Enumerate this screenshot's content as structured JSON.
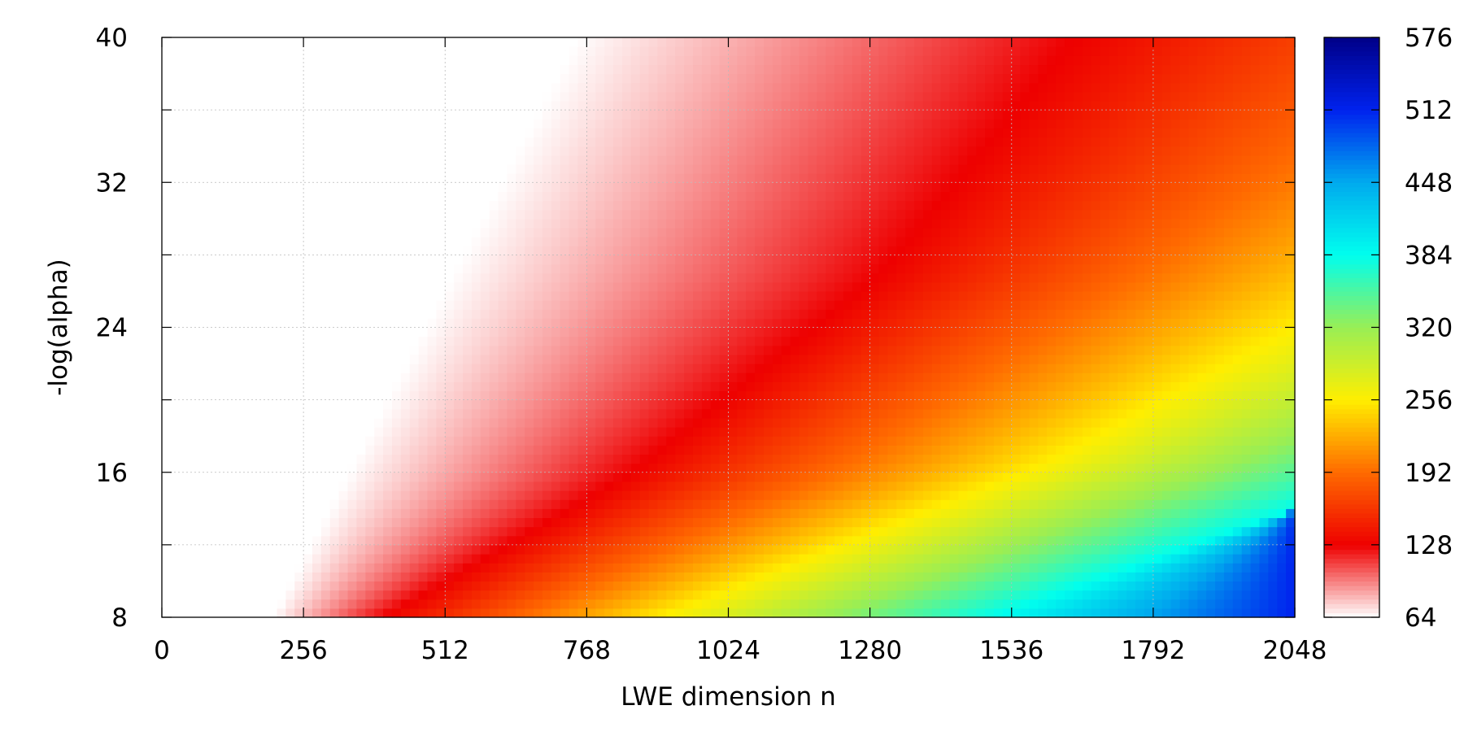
{
  "chart_data": {
    "type": "heatmap",
    "xlabel": "LWE dimension n",
    "ylabel": "-log(alpha)",
    "xlim": [
      0,
      2048
    ],
    "ylim": [
      8,
      40
    ],
    "x_ticks": [
      "0",
      "256",
      "512",
      "768",
      "1024",
      "1280",
      "1536",
      "1792",
      "2048"
    ],
    "y_ticks": [
      "8",
      "16",
      "24",
      "32",
      "40"
    ],
    "colorbar": {
      "range": [
        64,
        576
      ],
      "ticks": [
        "64",
        "128",
        "192",
        "256",
        "320",
        "384",
        "448",
        "512",
        "576"
      ],
      "colormap": [
        {
          "value": 64,
          "color": "#ffffff"
        },
        {
          "value": 128,
          "color": "#ee0000"
        },
        {
          "value": 192,
          "color": "#ff6a00"
        },
        {
          "value": 256,
          "color": "#ffee00"
        },
        {
          "value": 320,
          "color": "#99ee55"
        },
        {
          "value": 384,
          "color": "#00ffee"
        },
        {
          "value": 448,
          "color": "#00aaee"
        },
        {
          "value": 512,
          "color": "#0022ee"
        },
        {
          "value": 576,
          "color": "#000088"
        }
      ]
    },
    "grid": true,
    "value_contours": [
      {
        "value": 64,
        "points": [
          [
            200,
            8
          ],
          [
            750,
            40
          ]
        ]
      },
      {
        "value": 128,
        "points": [
          [
            400,
            8
          ],
          [
            850,
            16
          ],
          [
            1300,
            27
          ],
          [
            1650,
            40
          ]
        ]
      },
      {
        "value": 256,
        "points": [
          [
            900,
            8
          ],
          [
            1600,
            16.5
          ],
          [
            2048,
            24
          ]
        ]
      },
      {
        "value": 384,
        "points": [
          [
            1500,
            8
          ],
          [
            2048,
            14
          ]
        ]
      },
      {
        "value": 512,
        "points": [
          [
            2048,
            7.5
          ]
        ]
      }
    ]
  }
}
